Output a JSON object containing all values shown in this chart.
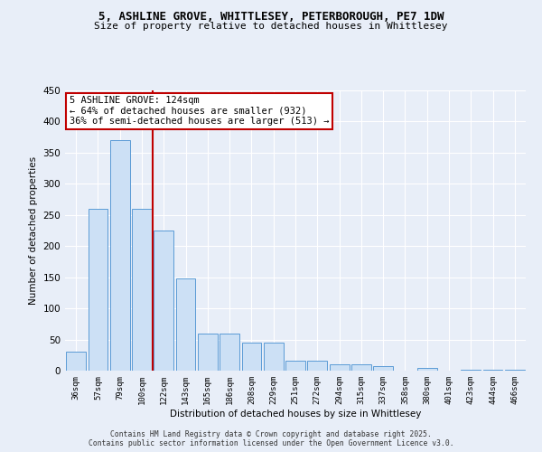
{
  "title_line1": "5, ASHLINE GROVE, WHITTLESEY, PETERBOROUGH, PE7 1DW",
  "title_line2": "Size of property relative to detached houses in Whittlesey",
  "xlabel": "Distribution of detached houses by size in Whittlesey",
  "ylabel": "Number of detached properties",
  "categories": [
    "36sqm",
    "57sqm",
    "79sqm",
    "100sqm",
    "122sqm",
    "143sqm",
    "165sqm",
    "186sqm",
    "208sqm",
    "229sqm",
    "251sqm",
    "272sqm",
    "294sqm",
    "315sqm",
    "337sqm",
    "358sqm",
    "380sqm",
    "401sqm",
    "423sqm",
    "444sqm",
    "466sqm"
  ],
  "values": [
    30,
    260,
    370,
    260,
    225,
    148,
    60,
    60,
    45,
    45,
    16,
    16,
    10,
    10,
    7,
    0,
    5,
    0,
    2,
    2,
    2
  ],
  "bar_color": "#cce0f5",
  "bar_edge_color": "#5b9bd5",
  "vline_color": "#c00000",
  "vline_x_index": 3,
  "annotation_text": "5 ASHLINE GROVE: 124sqm\n← 64% of detached houses are smaller (932)\n36% of semi-detached houses are larger (513) →",
  "annotation_box_color": "white",
  "annotation_box_edge": "#c00000",
  "ylim": [
    0,
    450
  ],
  "yticks": [
    0,
    50,
    100,
    150,
    200,
    250,
    300,
    350,
    400,
    450
  ],
  "bg_color": "#e8eef8",
  "footer_line1": "Contains HM Land Registry data © Crown copyright and database right 2025.",
  "footer_line2": "Contains public sector information licensed under the Open Government Licence v3.0."
}
